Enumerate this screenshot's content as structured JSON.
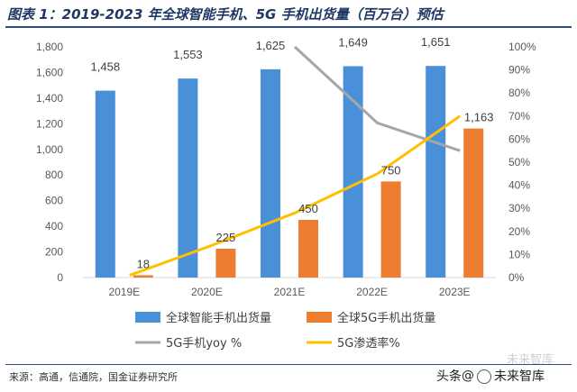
{
  "title": "图表 1：2019-2023 年全球智能手机、5G 手机出货量（百万台）预估",
  "source": "来源：高通，信通院，国金证券研究所",
  "watermark": {
    "prefix": "头条",
    "at": "@",
    "name": "未来智库",
    "ghost": "未来智库"
  },
  "colors": {
    "smartphone": "#4a90d9",
    "fiveg": "#ed7d31",
    "yoy": "#a6a6a6",
    "penetration": "#ffc000",
    "axis": "#595959",
    "grid": "#d9d9d9",
    "title": "#1f3864"
  },
  "chart_data": {
    "type": "bar",
    "categories": [
      "2019E",
      "2020E",
      "2021E",
      "2022E",
      "2023E"
    ],
    "series": [
      {
        "name": "全球智能手机出货量",
        "kind": "bar",
        "axis": "left",
        "values": [
          1458,
          1553,
          1625,
          1649,
          1651
        ],
        "labels": [
          "1,458",
          "1,553",
          "1,625",
          "1,649",
          "1,651"
        ]
      },
      {
        "name": "全球5G手机出货量",
        "kind": "bar",
        "axis": "left",
        "values": [
          18,
          225,
          450,
          750,
          1163
        ],
        "labels": [
          "18",
          "225",
          "450",
          "750",
          "1,163"
        ]
      },
      {
        "name": "5G手机yoy %",
        "kind": "line",
        "axis": "right",
        "values": [
          null,
          null,
          100,
          67,
          55
        ]
      },
      {
        "name": "5G渗透率%",
        "kind": "line",
        "axis": "right",
        "values": [
          1,
          14,
          28,
          45,
          70
        ]
      }
    ],
    "yleft": {
      "ylim": [
        0,
        1800
      ],
      "ticks": [
        0,
        200,
        400,
        600,
        800,
        1000,
        1200,
        1400,
        1600,
        1800
      ],
      "tick_labels": [
        "0",
        "200",
        "400",
        "600",
        "800",
        "1,000",
        "1,200",
        "1,400",
        "1,600",
        "1,800"
      ]
    },
    "yright": {
      "ylim": [
        0,
        100
      ],
      "ticks": [
        0,
        10,
        20,
        30,
        40,
        50,
        60,
        70,
        80,
        90,
        100
      ],
      "tick_labels": [
        "0%",
        "10%",
        "20%",
        "30%",
        "40%",
        "50%",
        "60%",
        "70%",
        "80%",
        "90%",
        "100%"
      ]
    },
    "legend": {
      "position": "bottom"
    }
  }
}
